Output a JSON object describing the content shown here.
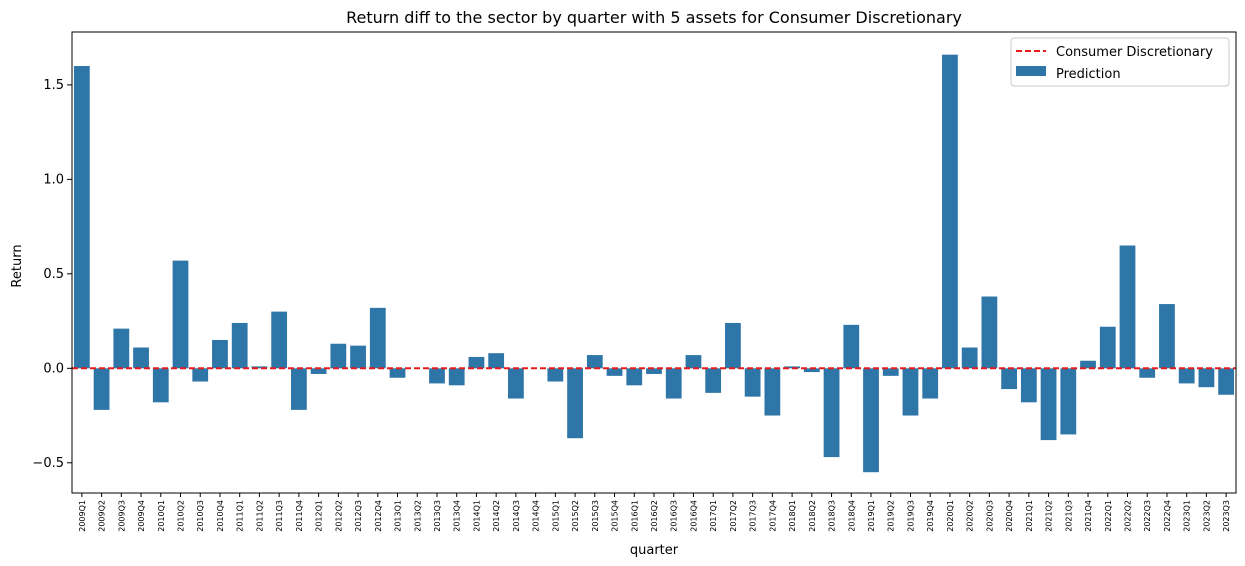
{
  "colors": {
    "bar": "#2e75a8",
    "baseline": "#e41a1c",
    "axis": "#000000",
    "background": "#ffffff"
  },
  "chart_data": {
    "type": "bar",
    "title": "Return diff to the sector by quarter with 5 assets for Consumer Discretionary",
    "xlabel": "quarter",
    "ylabel": "Return",
    "ylim": [
      -0.66,
      1.78
    ],
    "yticks": [
      -0.5,
      0.0,
      0.5,
      1.0,
      1.5
    ],
    "ytick_labels": [
      "−0.5",
      "0.0",
      "0.5",
      "1.0",
      "1.5"
    ],
    "grid": false,
    "legend_position": "top-right",
    "reference_line": {
      "name": "Consumer Discretionary",
      "value": 0.0,
      "style": "dashed"
    },
    "series": [
      {
        "name": "Prediction",
        "values": [
          1.6,
          -0.22,
          0.21,
          0.11,
          -0.18,
          0.57,
          -0.07,
          0.15,
          0.24,
          0.01,
          0.3,
          -0.22,
          -0.03,
          0.13,
          0.12,
          0.32,
          -0.05,
          0.0,
          -0.08,
          -0.09,
          0.06,
          0.08,
          -0.16,
          0.0,
          -0.07,
          -0.37,
          0.07,
          -0.04,
          -0.09,
          -0.03,
          -0.16,
          0.07,
          -0.13,
          0.24,
          -0.15,
          -0.25,
          0.01,
          -0.02,
          -0.47,
          0.23,
          -0.55,
          -0.04,
          -0.25,
          -0.16,
          1.66,
          0.11,
          0.38,
          -0.11,
          -0.18,
          -0.38,
          -0.35,
          0.04,
          0.22,
          0.65,
          -0.05,
          0.34,
          -0.08,
          -0.1,
          -0.14
        ]
      }
    ],
    "categories": [
      "2009Q1",
      "2009Q2",
      "2009Q3",
      "2009Q4",
      "2010Q1",
      "2010Q2",
      "2010Q3",
      "2010Q4",
      "2011Q1",
      "2011Q2",
      "2011Q3",
      "2011Q4",
      "2012Q1",
      "2012Q2",
      "2012Q3",
      "2012Q4",
      "2013Q1",
      "2013Q2",
      "2013Q3",
      "2013Q4",
      "2014Q1",
      "2014Q2",
      "2014Q3",
      "2014Q4",
      "2015Q1",
      "2015Q2",
      "2015Q3",
      "2015Q4",
      "2016Q1",
      "2016Q2",
      "2016Q3",
      "2016Q4",
      "2017Q1",
      "2017Q2",
      "2017Q3",
      "2017Q4",
      "2018Q1",
      "2018Q2",
      "2018Q3",
      "2018Q4",
      "2019Q1",
      "2019Q2",
      "2019Q3",
      "2019Q4",
      "2020Q1",
      "2020Q2",
      "2020Q3",
      "2020Q4",
      "2021Q1",
      "2021Q2",
      "2021Q3",
      "2021Q4",
      "2022Q1",
      "2022Q2",
      "2022Q3",
      "2022Q4",
      "2023Q1",
      "2023Q2",
      "2023Q3"
    ]
  }
}
